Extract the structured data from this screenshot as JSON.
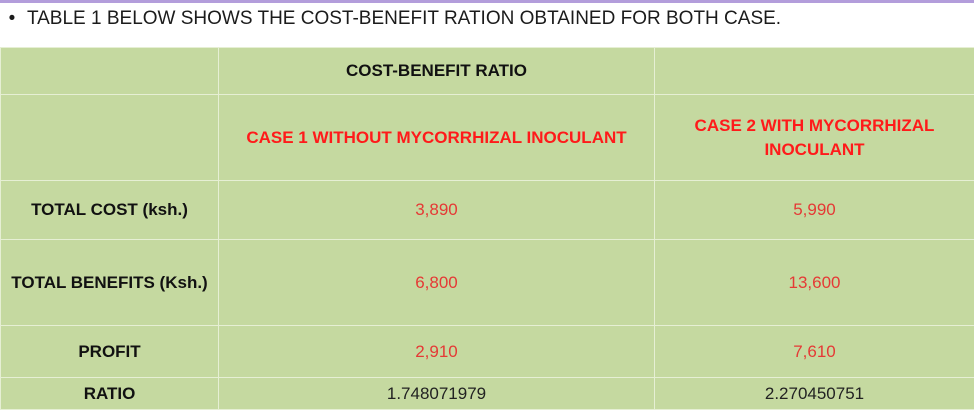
{
  "heading": {
    "bullet": "•",
    "text": "TABLE 1 BELOW SHOWS THE COST-BENEFIT RATION OBTAINED FOR BOTH CASE."
  },
  "table": {
    "group_header": "COST-BENEFIT RATIO",
    "columns": [
      "CASE 1 WITHOUT MYCORRHIZAL INOCULANT",
      "CASE 2 WITH MYCORRHIZAL INOCULANT"
    ],
    "rows": [
      {
        "label": "TOTAL COST (ksh.)",
        "values": [
          "3,890",
          "5,990"
        ]
      },
      {
        "label": "TOTAL BENEFITS (Ksh.)",
        "values": [
          "6,800",
          "13,600"
        ]
      },
      {
        "label": "PROFIT",
        "values": [
          "2,910",
          "7,610"
        ]
      },
      {
        "label": "RATIO",
        "values": [
          "1.748071979",
          "2.270450751"
        ]
      }
    ]
  }
}
